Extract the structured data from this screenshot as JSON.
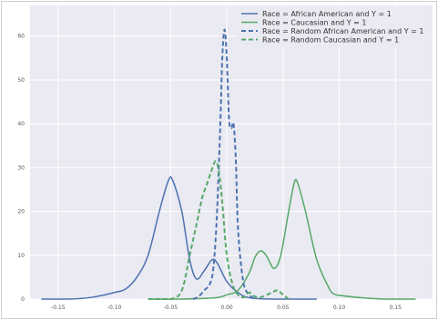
{
  "chart_data": {
    "type": "line",
    "title": "",
    "xlabel": "",
    "ylabel": "",
    "xlim": [
      -0.175,
      0.183
    ],
    "ylim": [
      0,
      67
    ],
    "grid": true,
    "legend_position": "top-right",
    "x_ticks": [
      -0.15,
      -0.1,
      -0.05,
      0.0,
      0.05,
      0.1,
      0.15
    ],
    "x_tick_labels": [
      "-0.15",
      "-0.10",
      "-0.05",
      "0.00",
      "0.05",
      "0.10",
      "0.15"
    ],
    "y_ticks": [
      0,
      10,
      20,
      30,
      40,
      50,
      60
    ],
    "y_tick_labels": [
      "0",
      "10",
      "20",
      "30",
      "40",
      "50",
      "60"
    ],
    "series": [
      {
        "name": "Race = African American and Y = 1",
        "color": "#4c72b0",
        "style": "solid",
        "points": [
          [
            -0.165,
            0
          ],
          [
            -0.14,
            0
          ],
          [
            -0.12,
            0.4
          ],
          [
            -0.1,
            1.5
          ],
          [
            -0.09,
            2.3
          ],
          [
            -0.08,
            5
          ],
          [
            -0.07,
            10
          ],
          [
            -0.06,
            20
          ],
          [
            -0.052,
            27
          ],
          [
            -0.048,
            27
          ],
          [
            -0.04,
            20
          ],
          [
            -0.033,
            9
          ],
          [
            -0.027,
            4.6
          ],
          [
            -0.02,
            6.5
          ],
          [
            -0.013,
            9
          ],
          [
            -0.008,
            8
          ],
          [
            0.0,
            4
          ],
          [
            0.01,
            1.5
          ],
          [
            0.02,
            0.3
          ],
          [
            0.04,
            0
          ],
          [
            0.08,
            0
          ]
        ]
      },
      {
        "name": "Race = Caucasian and Y = 1",
        "color": "#55a868",
        "style": "solid",
        "points": [
          [
            -0.07,
            0
          ],
          [
            -0.04,
            0
          ],
          [
            -0.01,
            0.3
          ],
          [
            0.0,
            1
          ],
          [
            0.01,
            2
          ],
          [
            0.02,
            6
          ],
          [
            0.025,
            9.5
          ],
          [
            0.03,
            11
          ],
          [
            0.035,
            10
          ],
          [
            0.042,
            7
          ],
          [
            0.048,
            10
          ],
          [
            0.055,
            20
          ],
          [
            0.06,
            26.5
          ],
          [
            0.063,
            26.5
          ],
          [
            0.07,
            20
          ],
          [
            0.08,
            9
          ],
          [
            0.09,
            3
          ],
          [
            0.095,
            1.2
          ],
          [
            0.105,
            0.7
          ],
          [
            0.12,
            0.3
          ],
          [
            0.14,
            0
          ],
          [
            0.168,
            0
          ]
        ]
      },
      {
        "name": "Race =  Random African American and Y = 1",
        "color": "#4c72b0",
        "style": "dashed",
        "points": [
          [
            -0.03,
            0
          ],
          [
            -0.025,
            0.6
          ],
          [
            -0.02,
            2
          ],
          [
            -0.015,
            3.5
          ],
          [
            -0.012,
            7
          ],
          [
            -0.009,
            18
          ],
          [
            -0.006,
            38
          ],
          [
            -0.004,
            55
          ],
          [
            -0.002,
            61.5
          ],
          [
            0.0,
            55
          ],
          [
            0.002,
            41
          ],
          [
            0.004,
            39
          ],
          [
            0.006,
            40
          ],
          [
            0.008,
            32
          ],
          [
            0.01,
            16
          ],
          [
            0.014,
            5
          ],
          [
            0.018,
            1.5
          ],
          [
            0.025,
            0
          ]
        ]
      },
      {
        "name": "Race = Random Caucasian and Y = 1",
        "color": "#55a868",
        "style": "dashed",
        "points": [
          [
            -0.07,
            0
          ],
          [
            -0.05,
            0
          ],
          [
            -0.04,
            2
          ],
          [
            -0.033,
            10
          ],
          [
            -0.027,
            17
          ],
          [
            -0.022,
            23
          ],
          [
            -0.018,
            26
          ],
          [
            -0.014,
            29
          ],
          [
            -0.01,
            31.5
          ],
          [
            -0.007,
            29
          ],
          [
            -0.004,
            22
          ],
          [
            0.0,
            10
          ],
          [
            0.005,
            3.5
          ],
          [
            0.01,
            1
          ],
          [
            0.015,
            0.4
          ],
          [
            0.02,
            1.5
          ],
          [
            0.025,
            0.6
          ],
          [
            0.03,
            0.4
          ],
          [
            0.04,
            1.5
          ],
          [
            0.045,
            2
          ],
          [
            0.05,
            1
          ],
          [
            0.055,
            0
          ]
        ]
      }
    ]
  }
}
